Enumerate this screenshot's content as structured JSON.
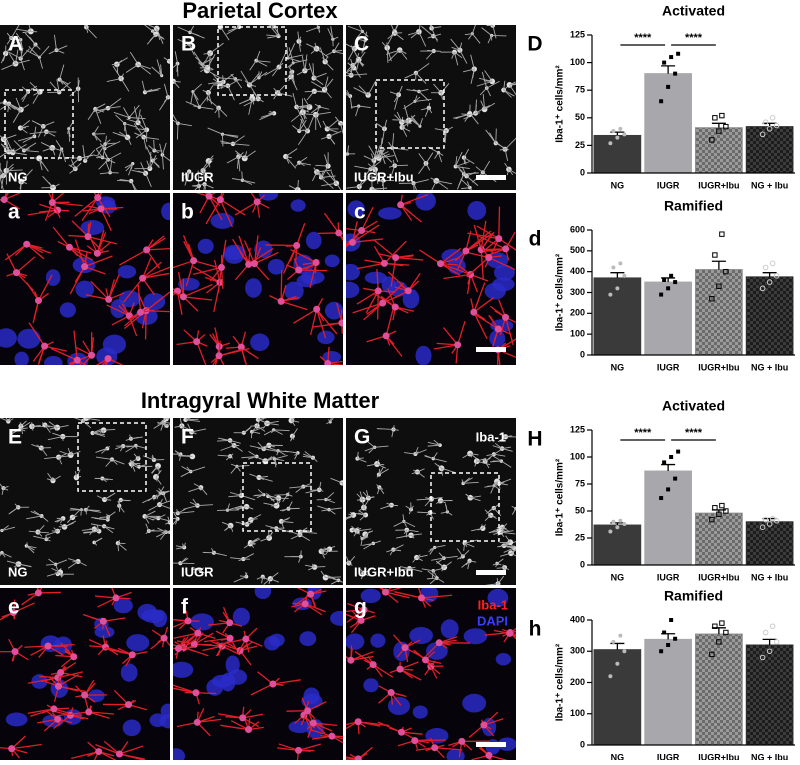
{
  "sections": [
    {
      "title": "Parietal Cortex",
      "gray_panels": [
        {
          "letter": "A",
          "condition": "NG"
        },
        {
          "letter": "B",
          "condition": "IUGR"
        },
        {
          "letter": "C",
          "condition": "IUGR+Ibu"
        }
      ],
      "color_panels": [
        "a",
        "b",
        "c"
      ]
    },
    {
      "title": "Intragyral White Matter",
      "gray_panels": [
        {
          "letter": "E",
          "condition": "NG"
        },
        {
          "letter": "F",
          "condition": "IUGR"
        },
        {
          "letter": "G",
          "condition": "IUGR+Ibu"
        }
      ],
      "stain_label": "Iba-1",
      "color_panels": [
        "e",
        "f",
        "g"
      ],
      "legend": [
        {
          "text": "Iba-1",
          "color": "#ff2020"
        },
        {
          "text": "DAPI",
          "color": "#3c3cff"
        }
      ]
    }
  ],
  "chart_data": [
    {
      "type": "bar",
      "panel_label": "D",
      "title": "Activated",
      "ylabel": "Iba-1⁺ cells/mm²",
      "categories": [
        "NG",
        "IUGR",
        "IUGR+Ibu",
        "NG + Ibu"
      ],
      "values": [
        34,
        90,
        41,
        42
      ],
      "errors": [
        3,
        7,
        4,
        3
      ],
      "points": [
        [
          27,
          32,
          35,
          38,
          40
        ],
        [
          65,
          78,
          90,
          100,
          105,
          108
        ],
        [
          30,
          38,
          42,
          50,
          52
        ],
        [
          35,
          40,
          43,
          46,
          50
        ]
      ],
      "colors": [
        "#3a3a3a",
        "#a8a8ac",
        "#8a8a8a",
        "#2c2c2c"
      ],
      "checkered": [
        false,
        false,
        true,
        true
      ],
      "ylim": [
        0,
        125
      ],
      "yticks": [
        0,
        25,
        50,
        75,
        100,
        125
      ],
      "annotations": [
        {
          "label": "****",
          "between": [
            "NG",
            "IUGR"
          ]
        },
        {
          "label": "****",
          "between": [
            "IUGR",
            "IUGR+Ibu"
          ]
        }
      ]
    },
    {
      "type": "bar",
      "panel_label": "d",
      "title": "Ramified",
      "ylabel": "Iba-1⁺ cells/mm²",
      "categories": [
        "NG",
        "IUGR",
        "IUGR+Ibu",
        "NG + Ibu"
      ],
      "values": [
        370,
        350,
        410,
        375
      ],
      "errors": [
        25,
        20,
        40,
        20
      ],
      "points": [
        [
          290,
          320,
          380,
          420,
          440
        ],
        [
          290,
          320,
          350,
          360,
          380
        ],
        [
          270,
          330,
          400,
          480,
          580
        ],
        [
          320,
          350,
          380,
          420,
          440
        ]
      ],
      "colors": [
        "#3a3a3a",
        "#a8a8ac",
        "#8a8a8a",
        "#2c2c2c"
      ],
      "checkered": [
        false,
        false,
        true,
        true
      ],
      "ylim": [
        0,
        600
      ],
      "yticks": [
        0,
        100,
        200,
        300,
        400,
        500,
        600
      ],
      "annotations": []
    },
    {
      "type": "bar",
      "panel_label": "H",
      "title": "Activated",
      "ylabel": "Iba-1⁺ cells/mm²",
      "categories": [
        "NG",
        "IUGR",
        "IUGR+Ibu",
        "NG + Ibu"
      ],
      "values": [
        37,
        87,
        48,
        40
      ],
      "errors": [
        2,
        6,
        3,
        3
      ],
      "points": [
        [
          31,
          35,
          38,
          40,
          41
        ],
        [
          62,
          70,
          80,
          95,
          100,
          105
        ],
        [
          42,
          47,
          50,
          53,
          55
        ],
        [
          35,
          38,
          41,
          42,
          43
        ]
      ],
      "colors": [
        "#3a3a3a",
        "#a8a8ac",
        "#8a8a8a",
        "#2c2c2c"
      ],
      "checkered": [
        false,
        false,
        true,
        true
      ],
      "ylim": [
        0,
        125
      ],
      "yticks": [
        0,
        25,
        50,
        75,
        100,
        125
      ],
      "annotations": [
        {
          "label": "****",
          "between": [
            "NG",
            "IUGR"
          ]
        },
        {
          "label": "****",
          "between": [
            "IUGR",
            "IUGR+Ibu"
          ]
        }
      ]
    },
    {
      "type": "bar",
      "panel_label": "h",
      "title": "Ramified",
      "ylabel": "Iba-1⁺ cells/mm²",
      "categories": [
        "NG",
        "IUGR",
        "IUGR+Ibu",
        "NG + Ibu"
      ],
      "values": [
        305,
        338,
        355,
        320
      ],
      "errors": [
        20,
        18,
        20,
        18
      ],
      "points": [
        [
          220,
          260,
          300,
          330,
          350
        ],
        [
          300,
          320,
          340,
          360,
          400
        ],
        [
          290,
          330,
          360,
          380,
          390
        ],
        [
          280,
          300,
          330,
          360,
          380
        ]
      ],
      "colors": [
        "#3a3a3a",
        "#a8a8ac",
        "#8a8a8a",
        "#2c2c2c"
      ],
      "checkered": [
        false,
        false,
        true,
        true
      ],
      "ylim": [
        0,
        400
      ],
      "yticks": [
        0,
        100,
        200,
        300,
        400
      ],
      "annotations": []
    }
  ]
}
